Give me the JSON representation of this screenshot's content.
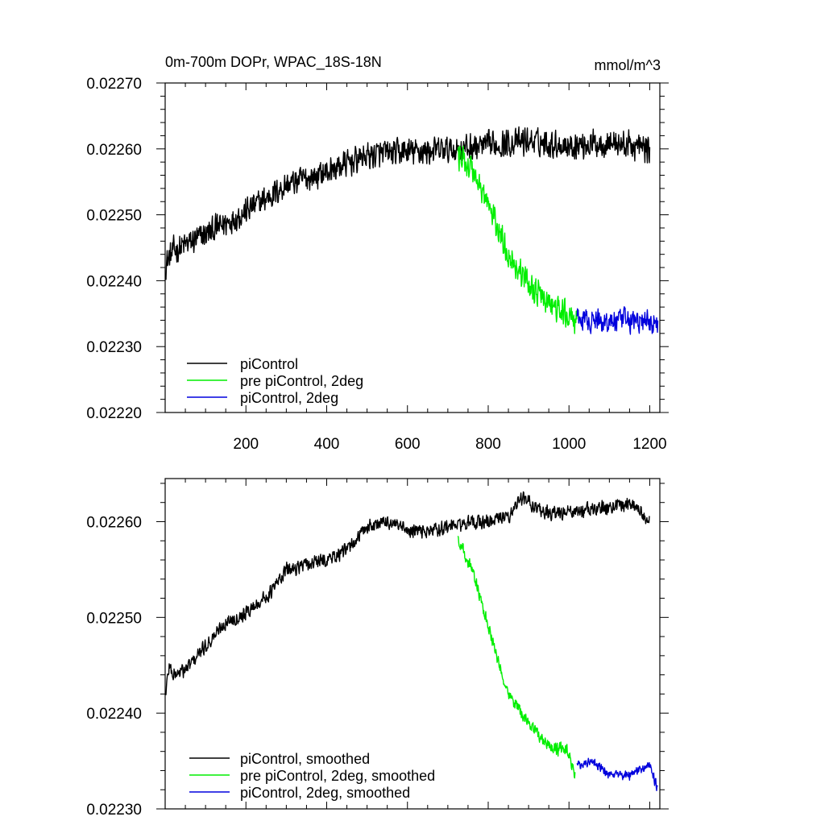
{
  "chart_data": [
    {
      "type": "line",
      "title": "0m-700m DOPr, WPAC_18S-18N",
      "units": "mmol/m^3",
      "xlim": [
        0,
        1225
      ],
      "ylim": [
        0.0222,
        0.0227
      ],
      "xticks": [
        200,
        400,
        600,
        800,
        1000,
        1200
      ],
      "xtick_labels": [
        "200",
        "400",
        "600",
        "800",
        "1000",
        "1200"
      ],
      "yticks": [
        0.0222,
        0.0223,
        0.0224,
        0.0225,
        0.0226,
        0.0227
      ],
      "ytick_labels": [
        "0.02220",
        "0.02230",
        "0.02240",
        "0.02250",
        "0.02260",
        "0.02270"
      ],
      "legend_position": "bottom-left",
      "series": [
        {
          "name": "piControl",
          "color": "#000000",
          "noise": 2.5e-05,
          "anchors": [
            [
              1,
              0.022425
            ],
            [
              20,
              0.022445
            ],
            [
              100,
              0.02247
            ],
            [
              200,
              0.022505
            ],
            [
              300,
              0.022545
            ],
            [
              400,
              0.022565
            ],
            [
              500,
              0.02259
            ],
            [
              600,
              0.022595
            ],
            [
              700,
              0.022598
            ],
            [
              800,
              0.022605
            ],
            [
              900,
              0.022612
            ],
            [
              1000,
              0.022605
            ],
            [
              1100,
              0.02261
            ],
            [
              1200,
              0.0226
            ]
          ]
        },
        {
          "name": "pre piControl, 2deg",
          "color": "#00ee00",
          "noise": 2.5e-05,
          "anchors": [
            [
              725,
              0.02259
            ],
            [
              760,
              0.02257
            ],
            [
              800,
              0.022515
            ],
            [
              850,
              0.02244
            ],
            [
              900,
              0.022395
            ],
            [
              950,
              0.022365
            ],
            [
              1000,
              0.022345
            ],
            [
              1020,
              0.02234
            ]
          ]
        },
        {
          "name": "piControl, 2deg",
          "color": "#0000dd",
          "noise": 2.2e-05,
          "anchors": [
            [
              1020,
              0.02234
            ],
            [
              1100,
              0.022338
            ],
            [
              1150,
              0.02234
            ],
            [
              1220,
              0.022335
            ]
          ]
        }
      ]
    },
    {
      "type": "line",
      "title": "",
      "xlim": [
        0,
        1225
      ],
      "ylim": [
        0.0223,
        0.022645
      ],
      "xticks": [
        200,
        400,
        600,
        800,
        1000,
        1200
      ],
      "yticks": [
        0.0223,
        0.0224,
        0.0225,
        0.0226
      ],
      "ytick_labels": [
        "0.02230",
        "0.02240",
        "0.02250",
        "0.02260"
      ],
      "legend_position": "bottom-left",
      "series": [
        {
          "name": "piControl, smoothed",
          "color": "#000000",
          "noise": 9e-06,
          "anchors": [
            [
              1,
              0.02242
            ],
            [
              10,
              0.02245
            ],
            [
              20,
              0.02244
            ],
            [
              50,
              0.022445
            ],
            [
              100,
              0.02247
            ],
            [
              150,
              0.022495
            ],
            [
              200,
              0.022505
            ],
            [
              260,
              0.022525
            ],
            [
              300,
              0.02255
            ],
            [
              400,
              0.02256
            ],
            [
              450,
              0.02257
            ],
            [
              500,
              0.022595
            ],
            [
              550,
              0.0226
            ],
            [
              600,
              0.02259
            ],
            [
              650,
              0.02259
            ],
            [
              700,
              0.022595
            ],
            [
              750,
              0.022598
            ],
            [
              800,
              0.0226
            ],
            [
              850,
              0.022605
            ],
            [
              880,
              0.022625
            ],
            [
              950,
              0.022608
            ],
            [
              1000,
              0.02261
            ],
            [
              1100,
              0.022615
            ],
            [
              1150,
              0.02262
            ],
            [
              1195,
              0.022605
            ],
            [
              1200,
              0.0226
            ]
          ]
        },
        {
          "name": "pre piControl, 2deg, smoothed",
          "color": "#00ee00",
          "noise": 8e-06,
          "anchors": [
            [
              725,
              0.02258
            ],
            [
              760,
              0.02255
            ],
            [
              790,
              0.022505
            ],
            [
              820,
              0.02246
            ],
            [
              850,
              0.02242
            ],
            [
              900,
              0.02239
            ],
            [
              950,
              0.022365
            ],
            [
              1000,
              0.02236
            ],
            [
              1015,
              0.022335
            ]
          ]
        },
        {
          "name": "piControl, 2deg, smoothed",
          "color": "#0000dd",
          "noise": 6e-06,
          "anchors": [
            [
              1020,
              0.022345
            ],
            [
              1060,
              0.02235
            ],
            [
              1100,
              0.022335
            ],
            [
              1150,
              0.022335
            ],
            [
              1200,
              0.022345
            ],
            [
              1220,
              0.02232
            ]
          ]
        }
      ]
    }
  ]
}
